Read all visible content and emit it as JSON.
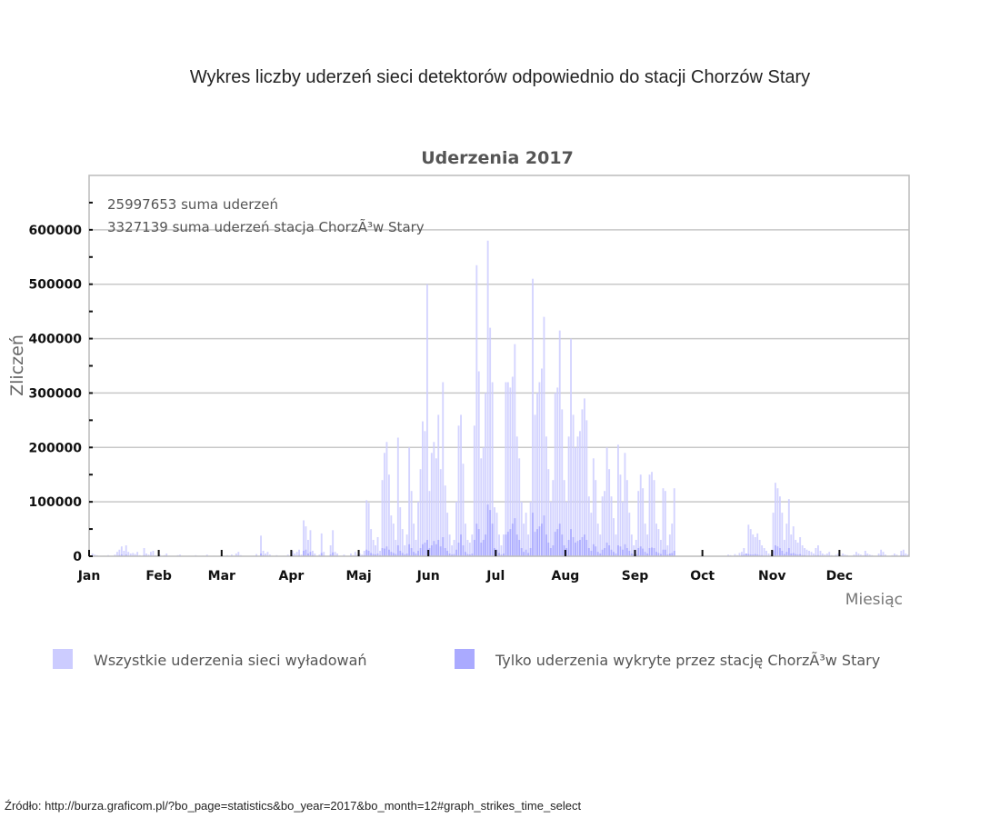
{
  "page": {
    "heading": "Wykres liczby uderzeń sieci detektorów odpowiednio do stacji Chorzów Stary",
    "source": "Źródło: http://burza.graficom.pl/?bo_page=statistics&bo_year=2017&bo_month=12#graph_strikes_time_select"
  },
  "chart_data": {
    "type": "bar",
    "title": "Uderzenia 2017",
    "xlabel": "Miesiąc",
    "ylabel": "Zliczeń",
    "ylim": [
      0,
      700000
    ],
    "yticks": [
      "0",
      "100000",
      "200000",
      "300000",
      "400000",
      "500000",
      "600000"
    ],
    "months": [
      "Jan",
      "Feb",
      "Mar",
      "Apr",
      "Maj",
      "Jun",
      "Jul",
      "Aug",
      "Sep",
      "Oct",
      "Nov",
      "Dec"
    ],
    "annotations": [
      "25997653 suma uderzeń",
      "3327139 suma uderzeń stacja ChorzÃ³w Stary"
    ],
    "grid": true,
    "legend_position": "bottom",
    "value_unit": "thousands of strikes per day",
    "series": [
      {
        "name": "Wszystkie uderzenia sieci wyładowań",
        "color": "#ccccff",
        "values": [
          0,
          5,
          3,
          2,
          0,
          0,
          1,
          0,
          2,
          0,
          0,
          3,
          8,
          12,
          18,
          10,
          20,
          8,
          5,
          6,
          4,
          8,
          2,
          0,
          15,
          5,
          3,
          8,
          10,
          2,
          0,
          3,
          0,
          2,
          5,
          1,
          0,
          0,
          0,
          2,
          3,
          0,
          0,
          0,
          1,
          0,
          0,
          2,
          0,
          0,
          1,
          0,
          3,
          0,
          0,
          1,
          0,
          0,
          0,
          0,
          0,
          2,
          0,
          3,
          0,
          5,
          8,
          2,
          0,
          0,
          0,
          0,
          0,
          1,
          4,
          0,
          38,
          10,
          5,
          8,
          3,
          0,
          0,
          2,
          0,
          0,
          1,
          0,
          3,
          0,
          10,
          5,
          8,
          12,
          3,
          66,
          55,
          30,
          48,
          10,
          5,
          0,
          3,
          42,
          8,
          0,
          0,
          20,
          48,
          8,
          5,
          0,
          0,
          3,
          0,
          0,
          5,
          2,
          8,
          3,
          5,
          3,
          10,
          103,
          98,
          50,
          30,
          20,
          35,
          10,
          140,
          190,
          210,
          150,
          75,
          60,
          30,
          218,
          90,
          50,
          20,
          40,
          200,
          120,
          60,
          30,
          100,
          160,
          248,
          230,
          500,
          120,
          190,
          210,
          180,
          260,
          160,
          320,
          130,
          80,
          40,
          20,
          30,
          100,
          240,
          260,
          170,
          60,
          30,
          25,
          40,
          240,
          535,
          340,
          180,
          200,
          300,
          580,
          420,
          320,
          90,
          80,
          40,
          20,
          40,
          320,
          320,
          310,
          330,
          390,
          220,
          180,
          100,
          60,
          80,
          40,
          100,
          510,
          260,
          300,
          320,
          345,
          440,
          220,
          160,
          100,
          140,
          300,
          310,
          415,
          270,
          140,
          100,
          220,
          400,
          260,
          200,
          220,
          230,
          270,
          290,
          250,
          110,
          80,
          180,
          140,
          60,
          40,
          110,
          120,
          200,
          160,
          110,
          70,
          40,
          205,
          150,
          100,
          190,
          140,
          80,
          40,
          20,
          30,
          120,
          150,
          125,
          60,
          40,
          150,
          155,
          140,
          60,
          50,
          30,
          125,
          120,
          20,
          40,
          60,
          125,
          0,
          0,
          0,
          0,
          0,
          0,
          0,
          0,
          0,
          0,
          0,
          0,
          0,
          0,
          0,
          0,
          0,
          0,
          0,
          0,
          0,
          0,
          0,
          3,
          2,
          0,
          4,
          2,
          6,
          8,
          15,
          5,
          58,
          50,
          40,
          35,
          42,
          30,
          20,
          15,
          10,
          5,
          3,
          80,
          135,
          125,
          110,
          80,
          30,
          60,
          105,
          40,
          55,
          30,
          25,
          35,
          20,
          15,
          12,
          10,
          8,
          5,
          15,
          20,
          10,
          5,
          3,
          5,
          8,
          2,
          0,
          3,
          5,
          2,
          5,
          3,
          2,
          0,
          0,
          3,
          8,
          5,
          3,
          2,
          10,
          5,
          3,
          2,
          0,
          0,
          5,
          12,
          8,
          3,
          0,
          0,
          2,
          5,
          3,
          0,
          10,
          12,
          5,
          3
        ]
      },
      {
        "name": "Tylko uderzenia wykryte przez stację ChorzÃ³w Stary",
        "color": "#aaaaff",
        "values": [
          0,
          1,
          0,
          0,
          0,
          0,
          0,
          0,
          0,
          0,
          0,
          0,
          1,
          2,
          3,
          1,
          3,
          1,
          1,
          1,
          1,
          1,
          0,
          0,
          2,
          1,
          0,
          1,
          1,
          0,
          0,
          0,
          0,
          0,
          1,
          0,
          0,
          0,
          0,
          0,
          0,
          0,
          0,
          0,
          0,
          0,
          0,
          0,
          0,
          0,
          0,
          0,
          0,
          0,
          0,
          0,
          0,
          0,
          0,
          0,
          0,
          0,
          0,
          0,
          0,
          1,
          1,
          0,
          0,
          0,
          0,
          0,
          0,
          0,
          1,
          0,
          5,
          2,
          1,
          1,
          0,
          0,
          0,
          0,
          0,
          0,
          0,
          0,
          0,
          0,
          2,
          1,
          1,
          2,
          0,
          10,
          12,
          5,
          8,
          2,
          1,
          0,
          0,
          6,
          1,
          0,
          0,
          3,
          7,
          1,
          1,
          0,
          0,
          0,
          0,
          0,
          1,
          0,
          1,
          0,
          1,
          0,
          2,
          12,
          10,
          6,
          4,
          3,
          5,
          2,
          15,
          14,
          18,
          12,
          8,
          6,
          4,
          20,
          10,
          6,
          3,
          5,
          22,
          15,
          8,
          5,
          10,
          15,
          22,
          25,
          30,
          15,
          20,
          28,
          22,
          30,
          18,
          35,
          15,
          10,
          5,
          3,
          4,
          12,
          25,
          40,
          20,
          8,
          4,
          3,
          5,
          30,
          60,
          50,
          25,
          30,
          40,
          95,
          85,
          60,
          15,
          12,
          6,
          3,
          5,
          40,
          45,
          50,
          60,
          70,
          40,
          30,
          15,
          8,
          12,
          6,
          15,
          80,
          45,
          50,
          55,
          60,
          75,
          40,
          25,
          15,
          20,
          45,
          50,
          60,
          40,
          20,
          15,
          30,
          50,
          35,
          25,
          28,
          30,
          35,
          40,
          30,
          15,
          10,
          22,
          18,
          8,
          5,
          12,
          15,
          25,
          20,
          12,
          8,
          5,
          20,
          18,
          12,
          22,
          15,
          10,
          5,
          3,
          4,
          15,
          18,
          14,
          8,
          5,
          15,
          16,
          15,
          8,
          6,
          4,
          12,
          12,
          3,
          5,
          6,
          10,
          0,
          0,
          0,
          0,
          0,
          0,
          0,
          0,
          0,
          0,
          0,
          0,
          0,
          0,
          0,
          0,
          0,
          0,
          0,
          0,
          0,
          0,
          0,
          0,
          0,
          0,
          1,
          0,
          0,
          2,
          3,
          5,
          4,
          3,
          3,
          4,
          3,
          2,
          2,
          1,
          1,
          1,
          0,
          10,
          20,
          18,
          15,
          10,
          4,
          8,
          15,
          5,
          6,
          4,
          3,
          4,
          2,
          2,
          1,
          1,
          1,
          0,
          2,
          2,
          1,
          0,
          0,
          0,
          1,
          0,
          0,
          0,
          1,
          0,
          1,
          0,
          0,
          0,
          0,
          0,
          1,
          1,
          0,
          0,
          2,
          1,
          0,
          0,
          0,
          0,
          1,
          2,
          1,
          0,
          0,
          0,
          0,
          1,
          0,
          0,
          2,
          2,
          1,
          0
        ]
      }
    ]
  }
}
